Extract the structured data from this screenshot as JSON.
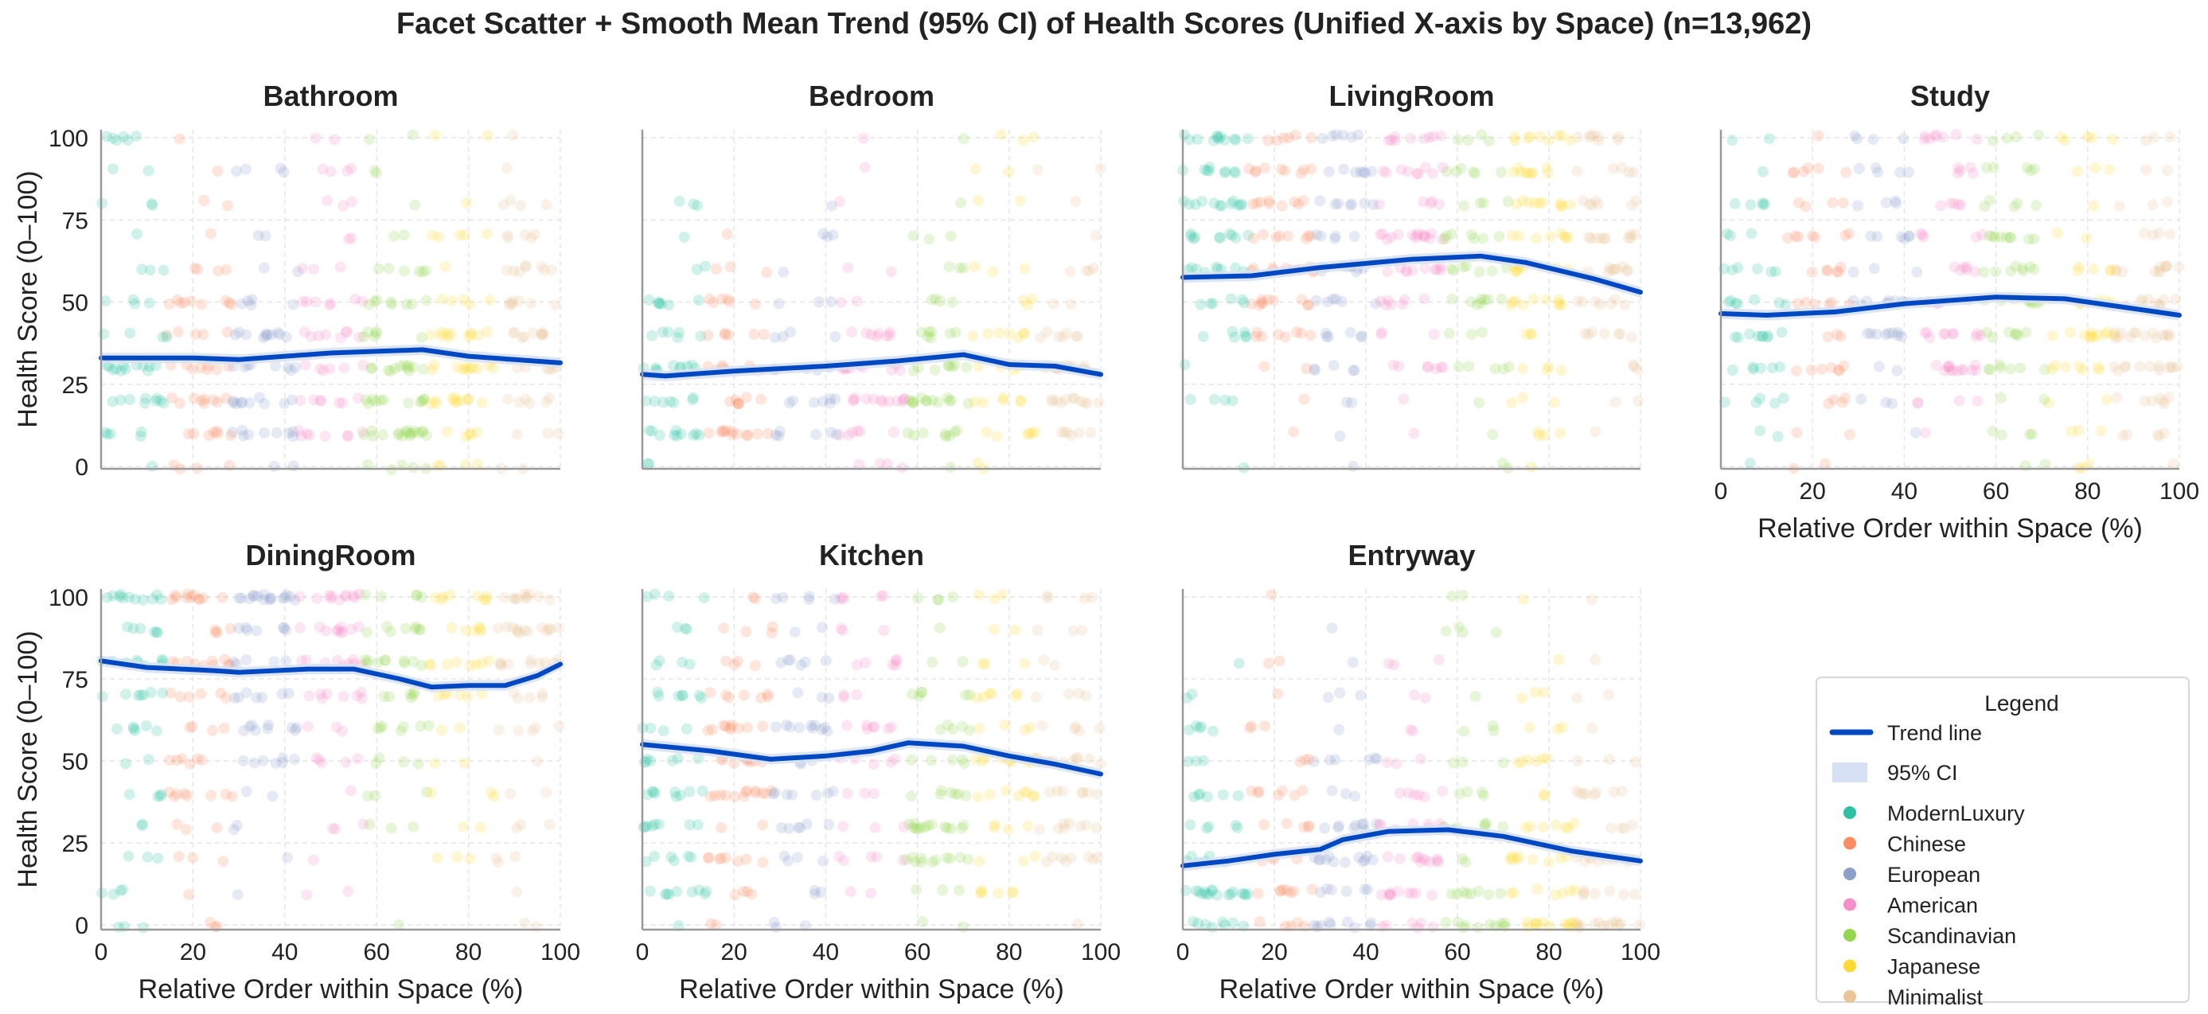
{
  "chart_data": {
    "type": "scatter",
    "title": "Facet Scatter + Smooth Mean Trend (95% CI) of Health Scores (Unified X-axis by Space) (n=13,962)",
    "xlabel": "Relative Order within Space (%)",
    "ylabel": "Health Score (0–100)",
    "xlim": [
      0,
      100
    ],
    "ylim": [
      0,
      100
    ],
    "xticks": [
      "0",
      "20",
      "40",
      "60",
      "80",
      "100"
    ],
    "yticks": [
      "0",
      "25",
      "50",
      "75",
      "100"
    ],
    "grid": true,
    "score_levels": [
      0,
      10,
      20,
      30,
      40,
      50,
      60,
      70,
      80,
      90,
      100
    ],
    "legend": {
      "title": "Legend",
      "placement": "bottom-right",
      "trend_label": "Trend line",
      "ci_label": "95% CI",
      "trend_color": "#0047c2",
      "ci_color": "#d6e1f5",
      "styles": [
        {
          "name": "ModernLuxury",
          "color": "#2fc2a2"
        },
        {
          "name": "Chinese",
          "color": "#fc8d62"
        },
        {
          "name": "European",
          "color": "#8da0cb"
        },
        {
          "name": "American",
          "color": "#f58fc8"
        },
        {
          "name": "Scandinavian",
          "color": "#93d64f"
        },
        {
          "name": "Japanese",
          "color": "#ffd92f"
        },
        {
          "name": "Minimalist",
          "color": "#e8c496"
        }
      ]
    },
    "panels": [
      {
        "name": "Bathroom",
        "density": [
          2,
          6,
          7,
          7,
          6,
          5,
          3,
          2,
          1.5,
          1.5,
          1.5
        ],
        "trend": [
          [
            0,
            33
          ],
          [
            10,
            33
          ],
          [
            20,
            33
          ],
          [
            30,
            32.5
          ],
          [
            40,
            33.5
          ],
          [
            50,
            34.5
          ],
          [
            60,
            35
          ],
          [
            70,
            35.5
          ],
          [
            80,
            33.5
          ],
          [
            90,
            32.5
          ],
          [
            100,
            31.5
          ]
        ]
      },
      {
        "name": "Bedroom",
        "density": [
          1,
          6,
          7,
          7,
          5,
          3,
          2,
          1,
          1,
          0.5,
          0.5
        ],
        "trend": [
          [
            0,
            28
          ],
          [
            5,
            27.5
          ],
          [
            20,
            29
          ],
          [
            40,
            30.5
          ],
          [
            55,
            32
          ],
          [
            70,
            34
          ],
          [
            80,
            31
          ],
          [
            90,
            30.5
          ],
          [
            100,
            28
          ]
        ]
      },
      {
        "name": "LivingRoom",
        "density": [
          0.5,
          1,
          1.5,
          3,
          4,
          6,
          7,
          7,
          6,
          6,
          6
        ],
        "trend": [
          [
            0,
            57.5
          ],
          [
            15,
            58
          ],
          [
            30,
            60.5
          ],
          [
            50,
            63
          ],
          [
            65,
            64
          ],
          [
            75,
            62
          ],
          [
            90,
            57
          ],
          [
            100,
            53
          ]
        ]
      },
      {
        "name": "Study",
        "density": [
          1,
          2,
          3,
          6,
          7,
          6,
          5,
          4,
          3,
          3,
          3
        ],
        "trend": [
          [
            0,
            46.5
          ],
          [
            10,
            46
          ],
          [
            25,
            47
          ],
          [
            40,
            49.5
          ],
          [
            55,
            51
          ],
          [
            60,
            51.5
          ],
          [
            75,
            51
          ],
          [
            85,
            49
          ],
          [
            100,
            46
          ]
        ]
      },
      {
        "name": "DiningRoom",
        "density": [
          1,
          1,
          1.5,
          2,
          2.5,
          3,
          4,
          5,
          7,
          6,
          8
        ],
        "trend": [
          [
            0,
            80.5
          ],
          [
            10,
            78.5
          ],
          [
            25,
            77.5
          ],
          [
            30,
            77
          ],
          [
            45,
            78
          ],
          [
            55,
            78
          ],
          [
            65,
            75
          ],
          [
            72,
            72.5
          ],
          [
            80,
            73
          ],
          [
            88,
            73
          ],
          [
            95,
            76
          ],
          [
            100,
            79.5
          ]
        ]
      },
      {
        "name": "Kitchen",
        "density": [
          1,
          3,
          5,
          5,
          6,
          6,
          5,
          4,
          3,
          2,
          3
        ],
        "trend": [
          [
            0,
            55
          ],
          [
            15,
            53
          ],
          [
            28,
            50.5
          ],
          [
            40,
            51.5
          ],
          [
            50,
            53
          ],
          [
            58,
            55.5
          ],
          [
            70,
            54.5
          ],
          [
            80,
            51.5
          ],
          [
            90,
            49
          ],
          [
            100,
            46
          ]
        ]
      },
      {
        "name": "Entryway",
        "density": [
          7,
          7,
          6,
          5,
          4,
          3,
          2,
          1.5,
          1,
          0.5,
          0.5
        ],
        "trend": [
          [
            0,
            18
          ],
          [
            10,
            19.5
          ],
          [
            20,
            21.5
          ],
          [
            30,
            23
          ],
          [
            35,
            26
          ],
          [
            45,
            28.5
          ],
          [
            58,
            29
          ],
          [
            70,
            27
          ],
          [
            85,
            22.5
          ],
          [
            100,
            19.5
          ]
        ]
      }
    ]
  }
}
